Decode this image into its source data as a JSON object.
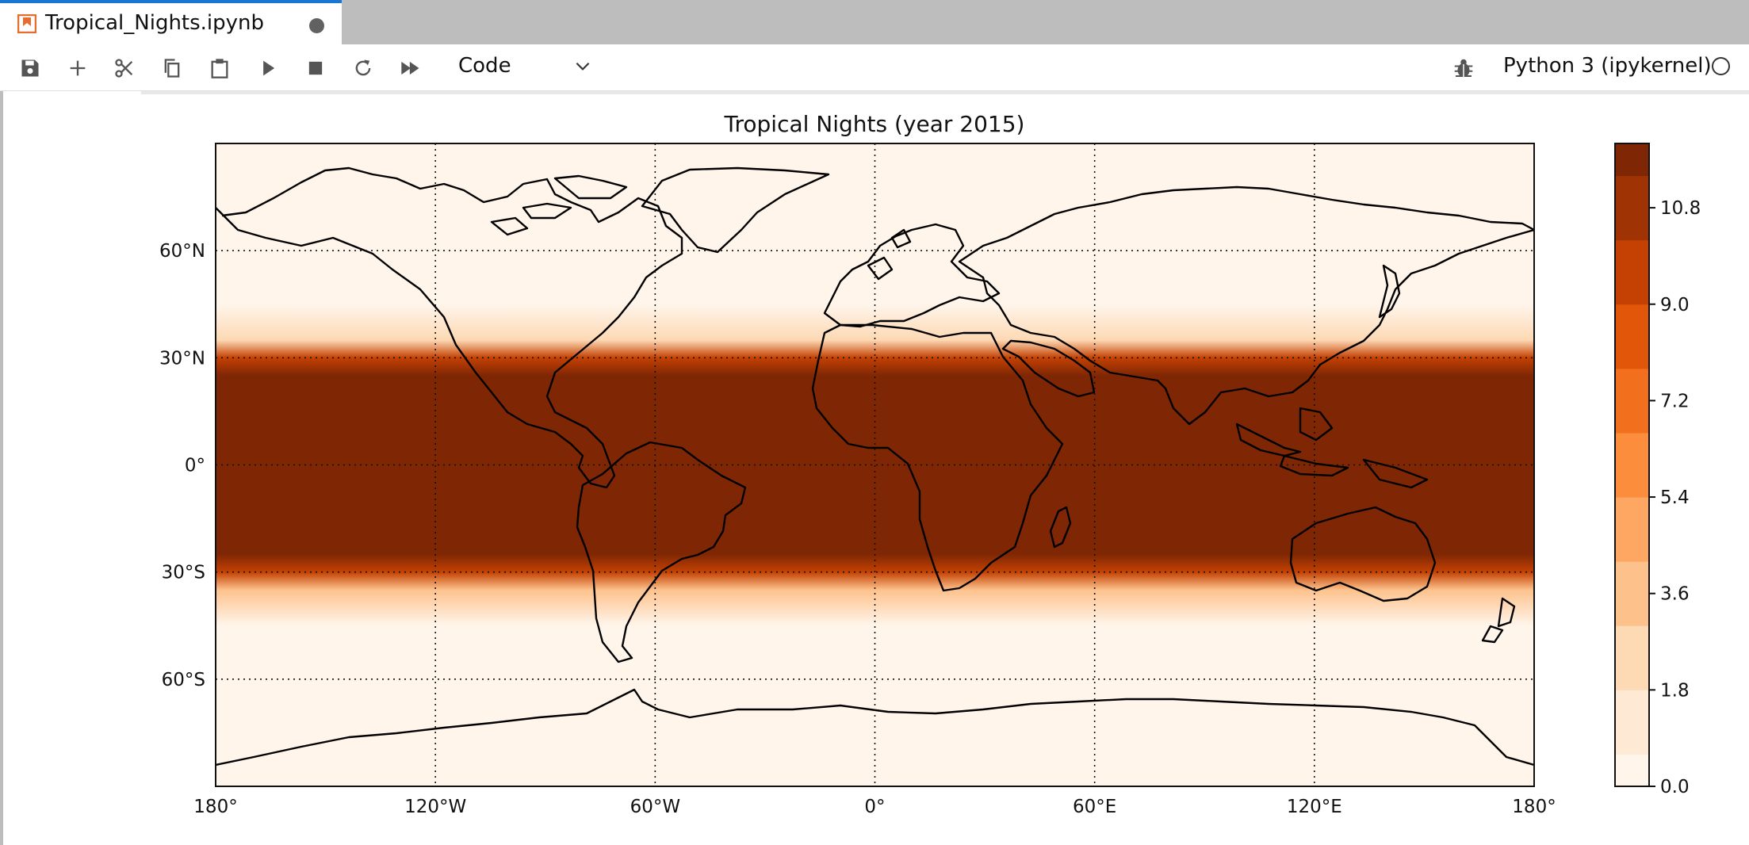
{
  "tab": {
    "title": "Tropical_Nights.ipynb",
    "icon": "notebook-icon",
    "dirty": true
  },
  "toolbar": {
    "buttons": [
      "save-icon",
      "add-icon",
      "cut-icon",
      "copy-icon",
      "paste-icon",
      "run-icon",
      "stop-icon",
      "restart-icon",
      "run-all-icon"
    ],
    "cell_type": "Code",
    "kernel": "Python 3 (ipykernel)",
    "debug_icon": "bug-icon"
  },
  "chart_data": {
    "type": "heatmap",
    "title": "Tropical Nights (year 2015)",
    "xlabel": "",
    "ylabel": "",
    "x_ticks": [
      "180°",
      "120°W",
      "60°W",
      "0°",
      "60°E",
      "120°E",
      "180°"
    ],
    "x_tick_values": [
      -180,
      -120,
      -60,
      0,
      60,
      120,
      180
    ],
    "y_ticks": [
      "60°N",
      "30°N",
      "0°",
      "30°S",
      "60°S"
    ],
    "y_tick_values": [
      60,
      30,
      0,
      -30,
      -60
    ],
    "xlim": [
      -180,
      180
    ],
    "ylim": [
      -90,
      90
    ],
    "gridlines": "dotted",
    "colormap": "Oranges",
    "colorbar": {
      "ticks": [
        "10.8",
        "9.0",
        "7.2",
        "5.4",
        "3.6",
        "1.8",
        "0.0"
      ],
      "tick_values": [
        10.8,
        9.0,
        7.2,
        5.4,
        3.6,
        1.8,
        0.0
      ],
      "range": [
        0,
        12
      ],
      "levels": 20,
      "colors": [
        "#fff5eb",
        "#fee9d4",
        "#fdd9b4",
        "#fdc28c",
        "#fda762",
        "#fb8d3d",
        "#f2701d",
        "#e25609",
        "#c44103",
        "#9f3303",
        "#7f2704"
      ]
    },
    "zonal_profile": {
      "latitude": [
        90,
        60,
        45,
        35,
        30,
        25,
        0,
        -25,
        -30,
        -35,
        -45,
        -60,
        -90
      ],
      "value": [
        0,
        0,
        0.4,
        2.5,
        9.5,
        12,
        12,
        12,
        9.5,
        3,
        0.3,
        0,
        0
      ]
    }
  }
}
